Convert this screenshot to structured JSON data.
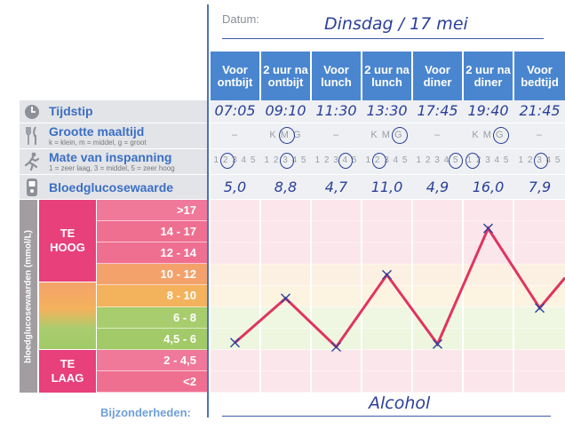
{
  "header": {
    "date_label": "Datum:",
    "date_value": "Dinsdag / 17 mei"
  },
  "columns": [
    {
      "label": "Voor ontbijt"
    },
    {
      "label": "2 uur na ontbijt"
    },
    {
      "label": "Voor lunch"
    },
    {
      "label": "2 uur na lunch"
    },
    {
      "label": "Voor diner"
    },
    {
      "label": "2 uur na diner"
    },
    {
      "label": "Voor bedtijd"
    }
  ],
  "rows": {
    "time": {
      "title": "Tijdstip",
      "icon": "clock-icon",
      "values": [
        "07:05",
        "09:10",
        "11:30",
        "13:30",
        "17:45",
        "19:40",
        "21:45"
      ]
    },
    "meal": {
      "title": "Grootte maaltijd",
      "subtitle": "k = klein, m = middel, g = groot",
      "icon": "cutlery-icon",
      "cells": [
        "–",
        "K M G",
        "–",
        "K M G",
        "–",
        "K M G",
        "–"
      ],
      "selected": [
        null,
        "M",
        null,
        "G",
        null,
        "G",
        null
      ]
    },
    "effort": {
      "title": "Mate van inspanning",
      "subtitle": "1 = zeer laag, 3 = middel, 5 = zeer hoog",
      "icon": "runner-icon",
      "scale": "1 2 3 4 5",
      "selected": [
        2,
        3,
        4,
        2,
        5,
        1,
        3
      ]
    },
    "glucose": {
      "title": "Bloedglucosewaarde",
      "icon": "glucose-meter-icon",
      "values": [
        "5,0",
        "8,8",
        "4,7",
        "11,0",
        "4,9",
        "16,0",
        "7,9"
      ]
    }
  },
  "chart_data": {
    "type": "line",
    "ylabel": "bloedglucosewaarden (mmol/L)",
    "zones": [
      {
        "label": "TE HOOG",
        "color": "#e7407a"
      },
      {
        "label": "TE LAAG",
        "color": "#e7407a"
      }
    ],
    "bands": [
      {
        "label": ">17",
        "color": "#f07898"
      },
      {
        "label": "14 - 17",
        "color": "#ef6f91"
      },
      {
        "label": "12 - 14",
        "color": "#ef6f91"
      },
      {
        "label": "10 - 12",
        "color": "#f4a26b"
      },
      {
        "label": "8 - 10",
        "color": "#f3b25c"
      },
      {
        "label": "6 - 8",
        "color": "#a8cd6e"
      },
      {
        "label": "4,5 - 6",
        "color": "#a2ca68"
      },
      {
        "label": "2 - 4,5",
        "color": "#f07898"
      },
      {
        "label": "<2",
        "color": "#ef6f91"
      }
    ],
    "series": [
      {
        "values": [
          5.0,
          8.8,
          4.7,
          11.0,
          4.9,
          16.0,
          7.9
        ]
      }
    ],
    "line_color": "#e0345f",
    "marker_color": "#2a3f9a"
  },
  "notes": {
    "label": "Bijzonderheden:",
    "value": "Alcohol"
  }
}
